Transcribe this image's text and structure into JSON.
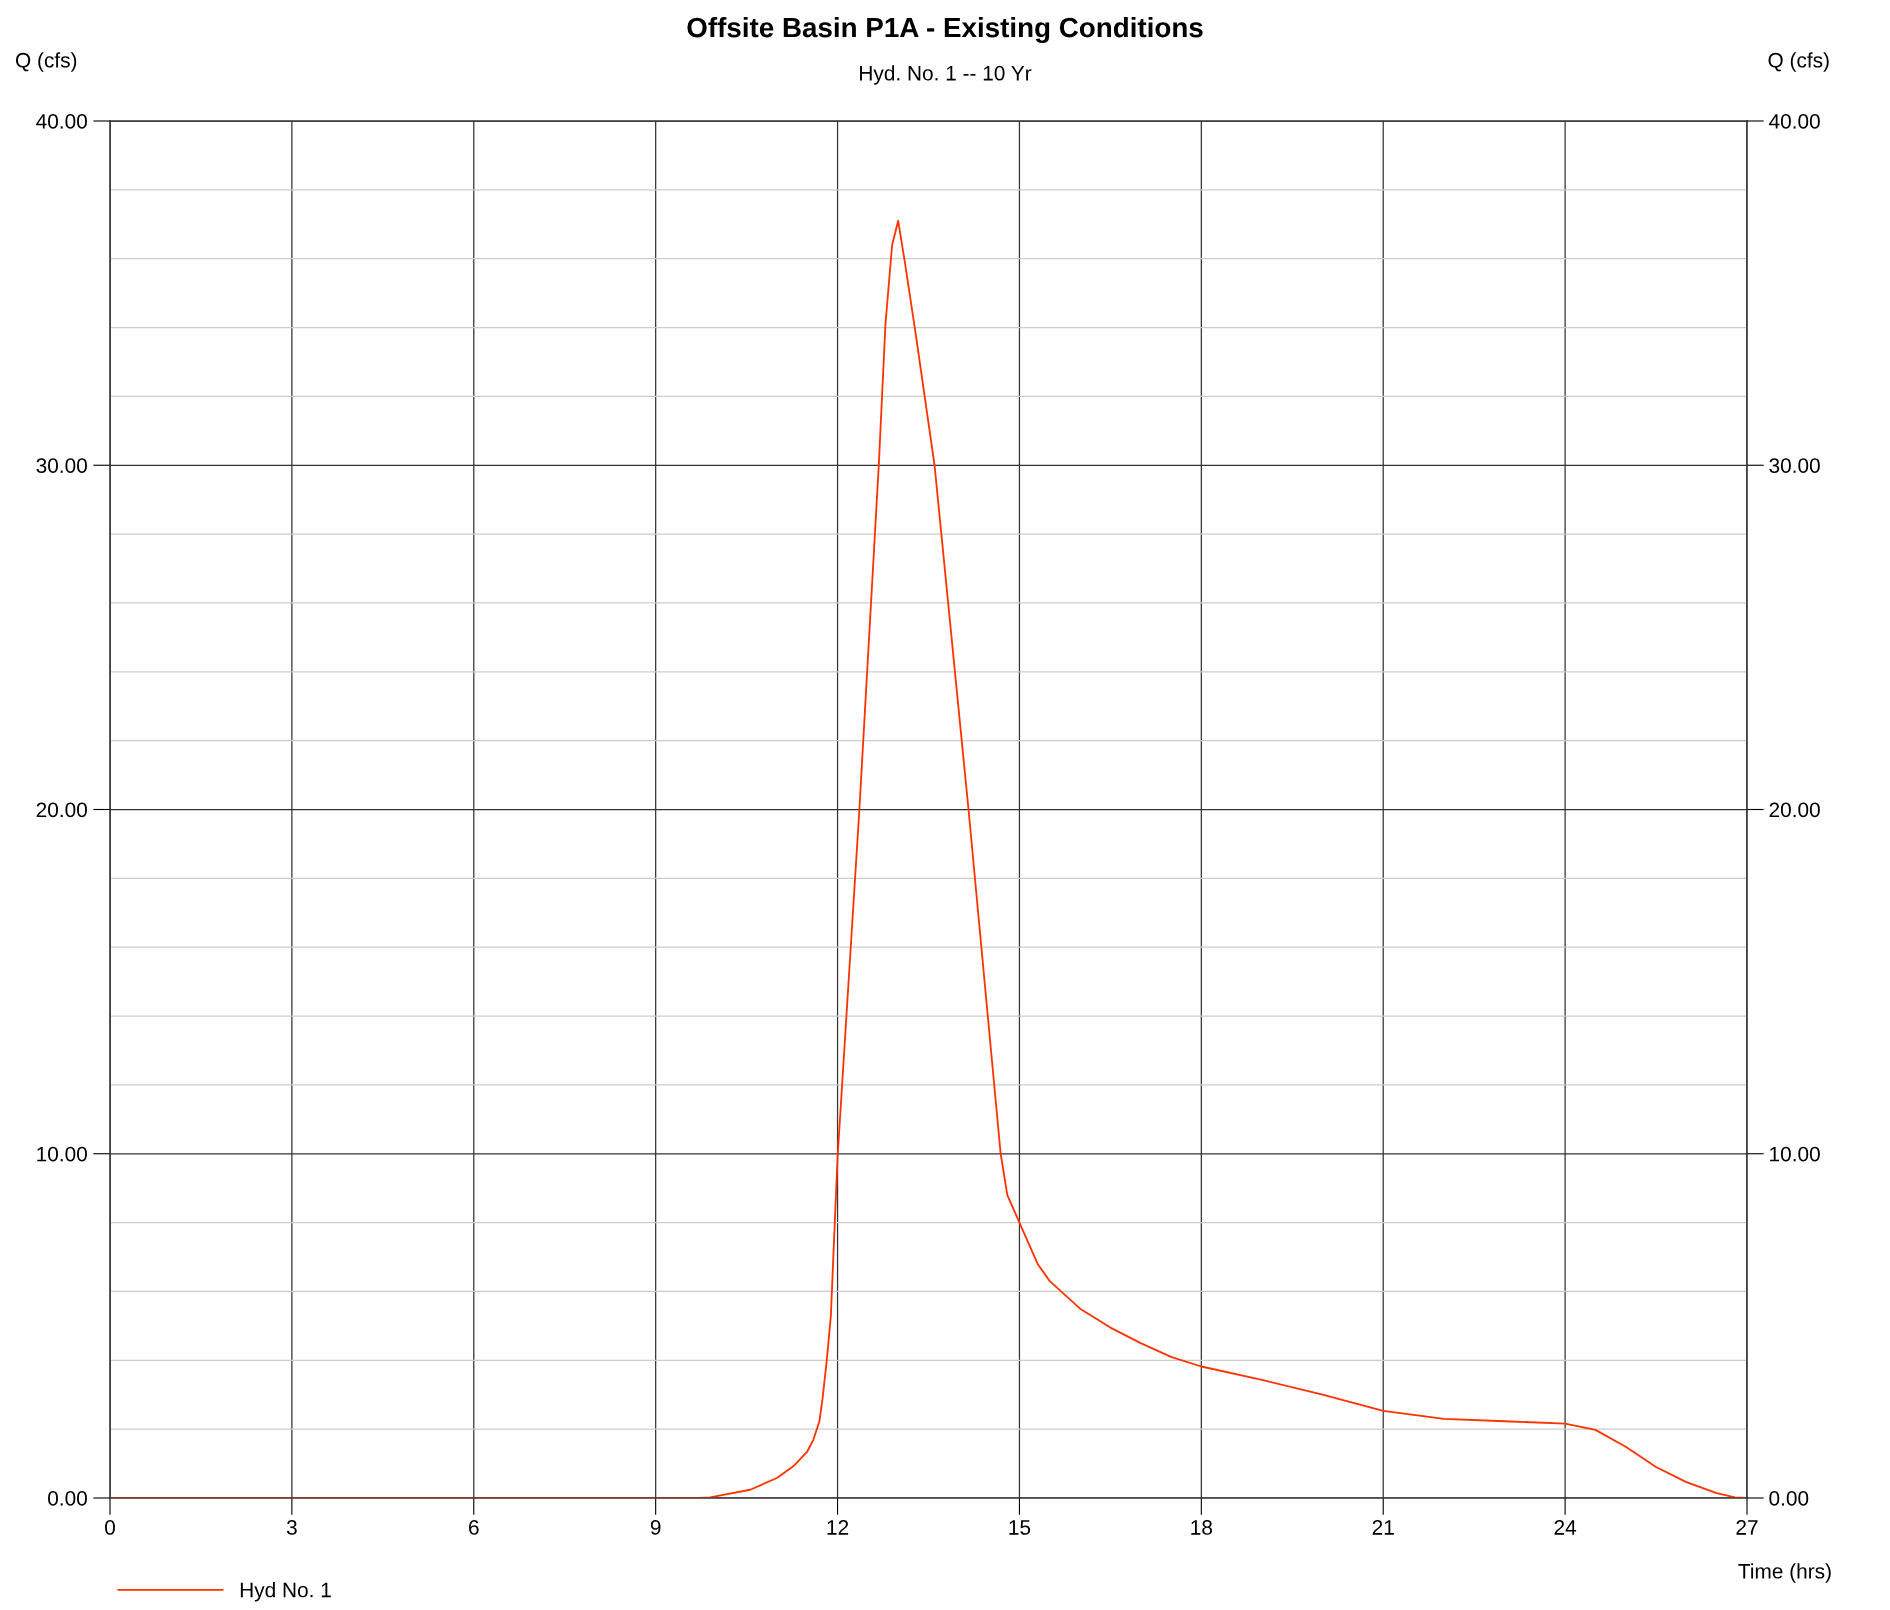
{
  "chart_data": {
    "type": "line",
    "title": "Offsite Basin P1A - Existing Conditions",
    "subtitle": "Hyd. No. 1 -- 10 Yr",
    "xlabel": "Time (hrs)",
    "ylabel": "Q (cfs)",
    "y2label": "Q (cfs)",
    "x": [
      0,
      9.7,
      9.9,
      10.56,
      11.0,
      11.27,
      11.5,
      11.6,
      11.7,
      11.75,
      11.82,
      11.89,
      11.93,
      12.0,
      12.36,
      12.68,
      12.79,
      12.9,
      13.0,
      13.11,
      13.29,
      13.6,
      14.16,
      14.69,
      14.8,
      15.0,
      15.3,
      15.5,
      16.0,
      16.5,
      17.0,
      17.5,
      18.0,
      19.0,
      20.0,
      21.0,
      22.0,
      23.0,
      24.0,
      24.5,
      25.0,
      25.5,
      26.0,
      26.5,
      26.8,
      27.0
    ],
    "series": [
      {
        "name": "Hyd No. 1",
        "color": "#ff3300",
        "values": [
          0,
          0,
          0.02,
          0.24,
          0.58,
          0.92,
          1.35,
          1.69,
          2.22,
          2.85,
          3.96,
          5.3,
          7.0,
          9.9,
          20,
          30,
          34.1,
          36.4,
          37.1,
          35.9,
          33.8,
          30,
          20,
          10,
          8.8,
          8.0,
          6.8,
          6.3,
          5.5,
          4.95,
          4.5,
          4.1,
          3.82,
          3.43,
          3.0,
          2.53,
          2.3,
          2.23,
          2.16,
          1.98,
          1.49,
          0.9,
          0.46,
          0.14,
          0.02,
          0
        ]
      }
    ],
    "xlim": [
      0,
      27
    ],
    "xticks": [
      0,
      3,
      6,
      9,
      12,
      15,
      18,
      21,
      24,
      27
    ],
    "ylim": [
      0,
      40
    ],
    "yticks": [
      {
        "value": 0,
        "label": "0.00"
      },
      {
        "value": 2,
        "label": null
      },
      {
        "value": 4,
        "label": null
      },
      {
        "value": 6,
        "label": null
      },
      {
        "value": 8,
        "label": null
      },
      {
        "value": 10,
        "label": "10.00"
      },
      {
        "value": 12,
        "label": null
      },
      {
        "value": 14,
        "label": null
      },
      {
        "value": 16,
        "label": null
      },
      {
        "value": 18,
        "label": null
      },
      {
        "value": 20,
        "label": "20.00"
      },
      {
        "value": 22,
        "label": null
      },
      {
        "value": 24,
        "label": null
      },
      {
        "value": 26,
        "label": null
      },
      {
        "value": 28,
        "label": null
      },
      {
        "value": 30,
        "label": "30.00"
      },
      {
        "value": 32,
        "label": null
      },
      {
        "value": 34,
        "label": null
      },
      {
        "value": 36,
        "label": null
      },
      {
        "value": 38,
        "label": null
      },
      {
        "value": 40,
        "label": "40.00"
      }
    ],
    "y2lim": [
      0,
      40
    ],
    "y2ticks": [
      {
        "value": 0,
        "label": "0.00"
      },
      {
        "value": 10,
        "label": "10.00"
      },
      {
        "value": 20,
        "label": "20.00"
      },
      {
        "value": 30,
        "label": "30.00"
      },
      {
        "value": 40,
        "label": "40.00"
      }
    ],
    "grid": true,
    "legend": "bottom left",
    "line_style": "solid",
    "marker": "none"
  }
}
